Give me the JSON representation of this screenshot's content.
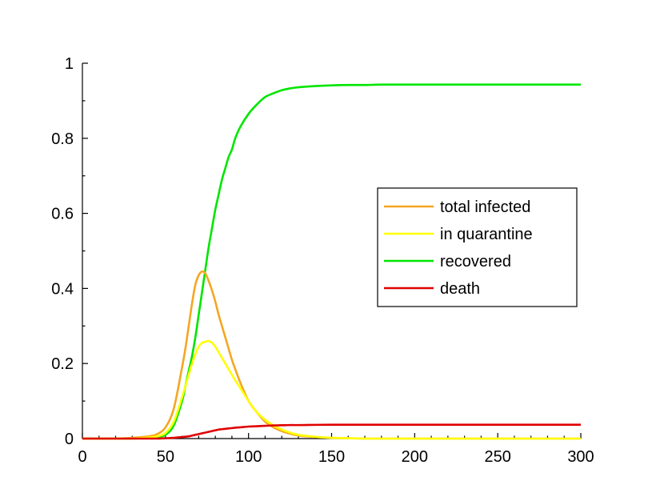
{
  "chart_data": {
    "type": "line",
    "title": "",
    "xlabel": "",
    "ylabel": "",
    "xlim": [
      0,
      300
    ],
    "ylim": [
      0,
      1
    ],
    "x_ticks": [
      0,
      50,
      100,
      150,
      200,
      250,
      300
    ],
    "x_tick_labels": [
      "0",
      "50",
      "100",
      "150",
      "200",
      "250",
      "300"
    ],
    "y_ticks": [
      0,
      0.2,
      0.4,
      0.6,
      0.8,
      1
    ],
    "y_tick_labels": [
      "0",
      "0.2",
      "0.4",
      "0.6",
      "0.8",
      "1"
    ],
    "grid": false,
    "legend_position": "right",
    "x": [
      0,
      10,
      20,
      30,
      40,
      45,
      50,
      55,
      60,
      62,
      64,
      66,
      68,
      70,
      72,
      74,
      76,
      78,
      80,
      82,
      84,
      86,
      88,
      90,
      92,
      95,
      100,
      105,
      110,
      115,
      120,
      125,
      130,
      140,
      150,
      160,
      170,
      180,
      200,
      220,
      240,
      260,
      280,
      300
    ],
    "series": [
      {
        "name": "total infected",
        "color": "#f5a623",
        "values": [
          0,
          0,
          0,
          0.002,
          0.006,
          0.012,
          0.03,
          0.08,
          0.19,
          0.24,
          0.3,
          0.36,
          0.41,
          0.435,
          0.445,
          0.44,
          0.42,
          0.395,
          0.365,
          0.33,
          0.3,
          0.27,
          0.24,
          0.21,
          0.185,
          0.15,
          0.1,
          0.07,
          0.045,
          0.03,
          0.02,
          0.013,
          0.008,
          0.004,
          0.002,
          0.001,
          0,
          0,
          0,
          0,
          0,
          0,
          0,
          0
        ]
      },
      {
        "name": "in quarantine",
        "color": "#ffff00",
        "values": [
          0,
          0,
          0,
          0,
          0.003,
          0.006,
          0.015,
          0.045,
          0.11,
          0.14,
          0.17,
          0.2,
          0.225,
          0.245,
          0.255,
          0.258,
          0.26,
          0.255,
          0.245,
          0.23,
          0.215,
          0.2,
          0.185,
          0.17,
          0.155,
          0.135,
          0.1,
          0.07,
          0.05,
          0.035,
          0.024,
          0.016,
          0.01,
          0.005,
          0.002,
          0.001,
          0,
          0,
          0,
          0,
          0,
          0,
          0,
          0
        ]
      },
      {
        "name": "recovered",
        "color": "#00e600",
        "values": [
          0,
          0,
          0,
          0,
          0.002,
          0.004,
          0.01,
          0.035,
          0.1,
          0.14,
          0.18,
          0.22,
          0.27,
          0.33,
          0.39,
          0.45,
          0.51,
          0.56,
          0.61,
          0.65,
          0.69,
          0.72,
          0.75,
          0.77,
          0.8,
          0.83,
          0.865,
          0.89,
          0.91,
          0.92,
          0.928,
          0.933,
          0.936,
          0.939,
          0.941,
          0.942,
          0.942,
          0.943,
          0.943,
          0.943,
          0.943,
          0.943,
          0.943,
          0.943
        ]
      },
      {
        "name": "death",
        "color": "#e00000",
        "values": [
          0,
          0,
          0,
          0,
          0,
          0,
          0.001,
          0.002,
          0.004,
          0.005,
          0.006,
          0.008,
          0.01,
          0.012,
          0.014,
          0.016,
          0.018,
          0.02,
          0.022,
          0.024,
          0.025,
          0.026,
          0.027,
          0.028,
          0.029,
          0.03,
          0.032,
          0.033,
          0.034,
          0.035,
          0.0355,
          0.036,
          0.036,
          0.0365,
          0.037,
          0.037,
          0.037,
          0.037,
          0.037,
          0.037,
          0.037,
          0.037,
          0.037,
          0.037
        ]
      }
    ]
  }
}
